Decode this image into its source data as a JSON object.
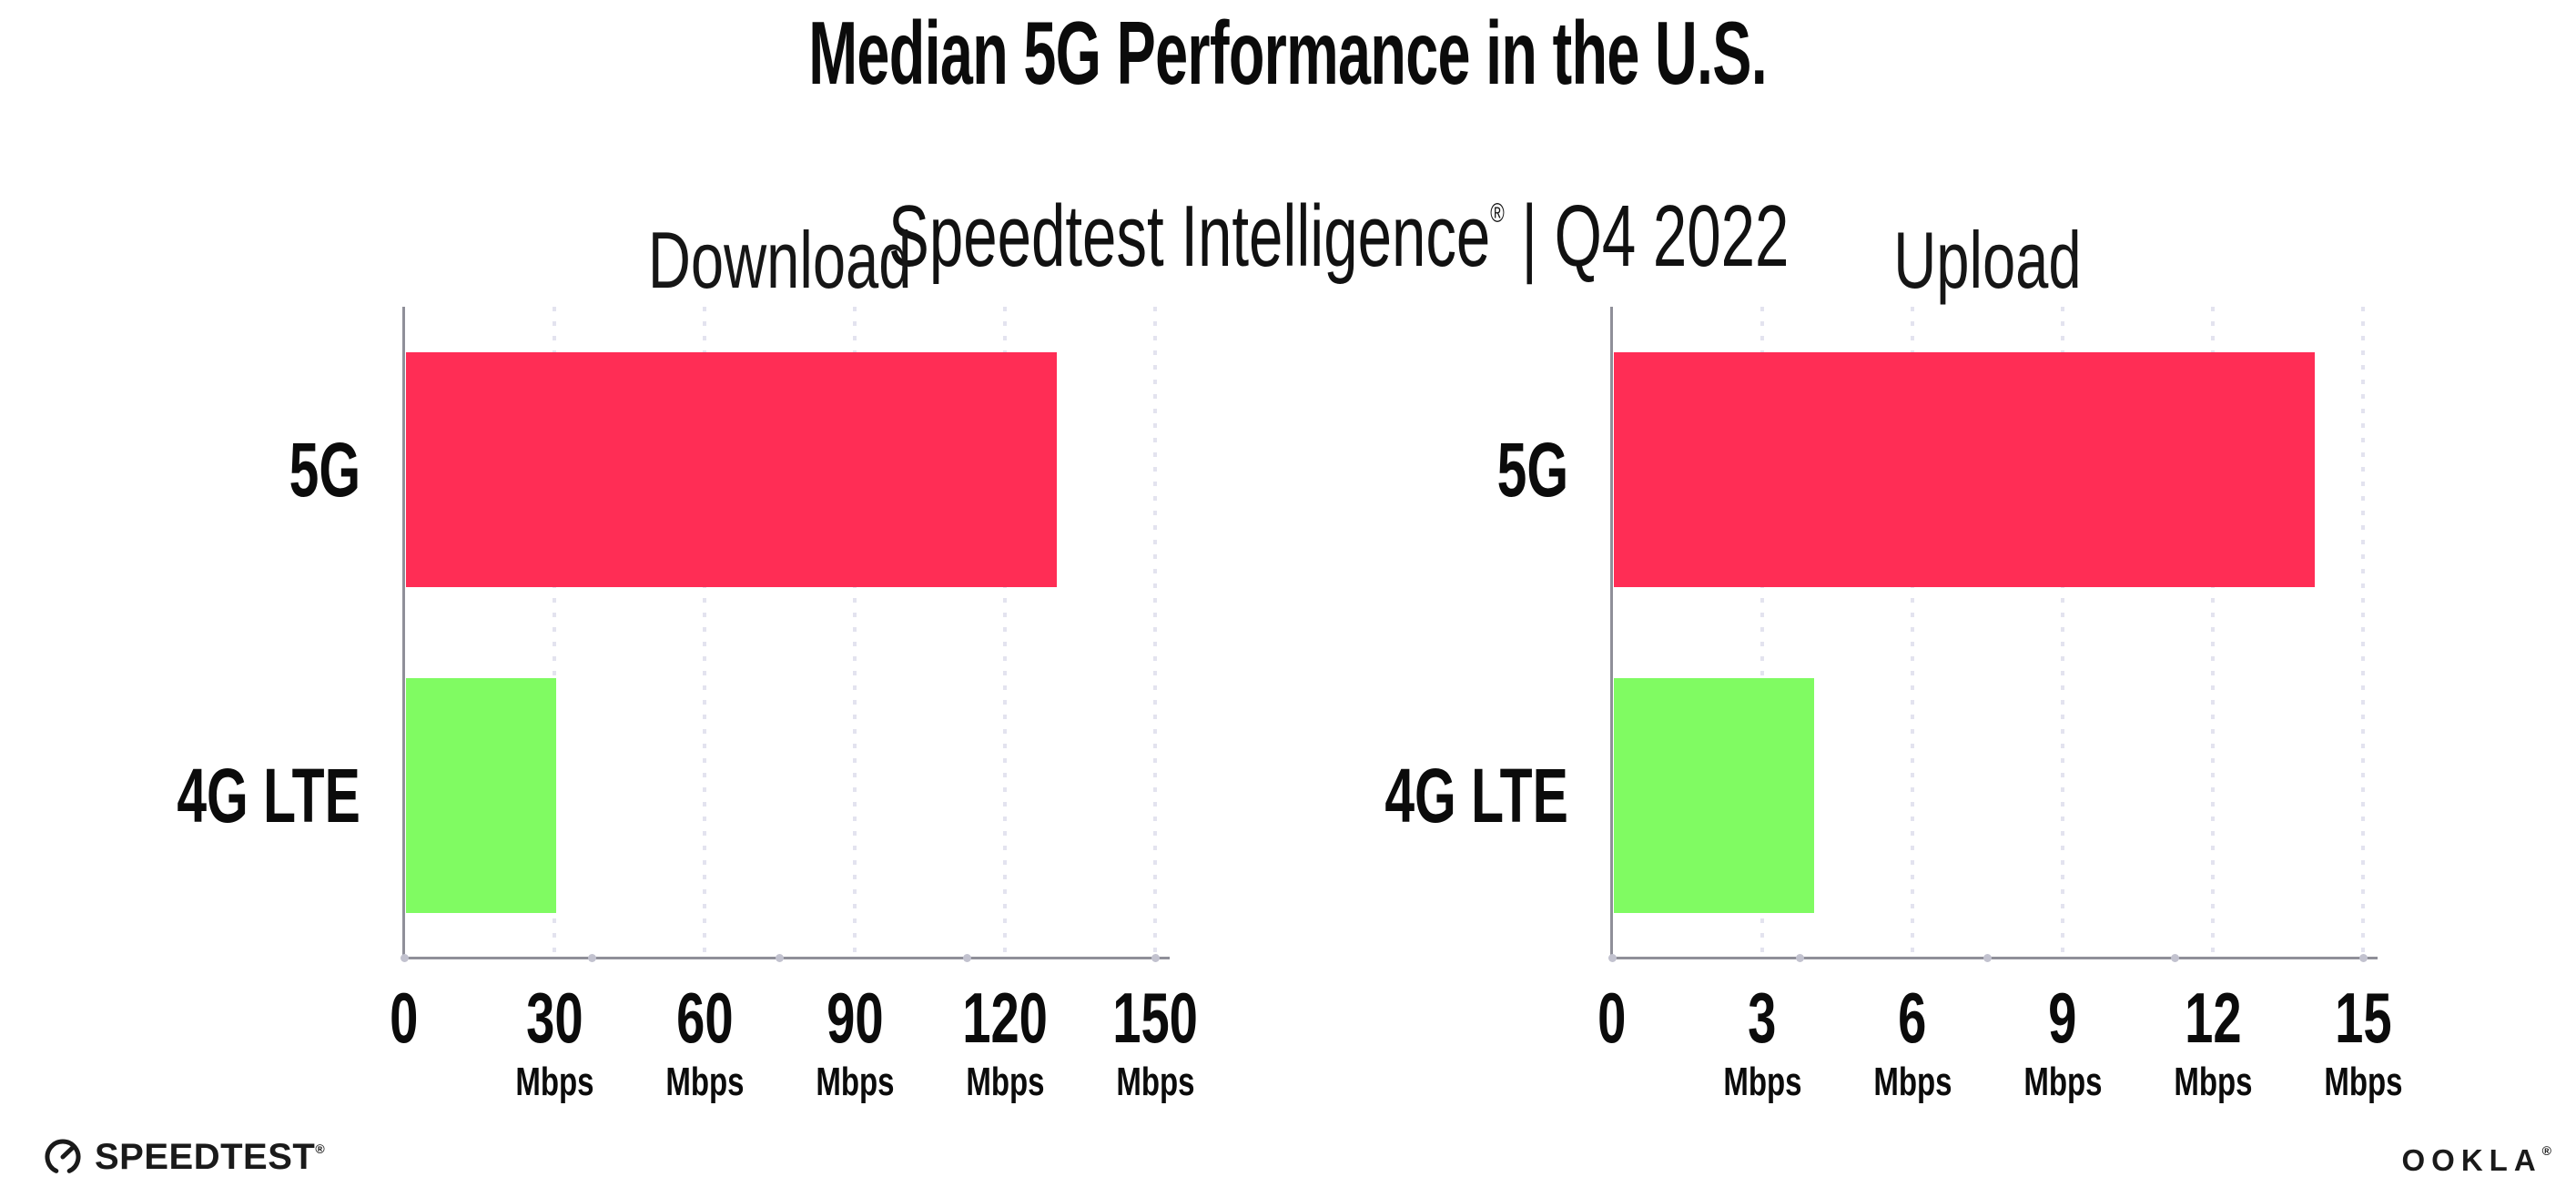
{
  "header": {
    "title": "Median 5G Performance in the U.S.",
    "subtitle_product": "Speedtest Intelligence",
    "subtitle_reg": "®",
    "subtitle_rest": " | Q4 2022"
  },
  "footer": {
    "speedtest_label": "SPEEDTEST",
    "speedtest_reg": "®",
    "ookla_label": "OOKLA",
    "ookla_reg": "®"
  },
  "colors": {
    "bar_5g": "#ff2d55",
    "bar_4g_lte": "#80fb62",
    "axis": "#8f8f99",
    "gridline": "#e3e3ef",
    "axis_dot": "#c2c2cf",
    "text": "#0b0b0b"
  },
  "chart_data": [
    {
      "type": "bar",
      "orientation": "horizontal",
      "title": "Download",
      "categories": [
        "5G",
        "4G LTE"
      ],
      "values": [
        130,
        30
      ],
      "unit": "Mbps",
      "xlim": [
        0,
        150
      ],
      "xticks": [
        0,
        30,
        60,
        90,
        120,
        150
      ],
      "tick_unit_label": "Mbps",
      "series_colors": [
        "#ff2d55",
        "#80fb62"
      ],
      "grid": "dotted vertical gridlines at each tick except 0",
      "legend": "none"
    },
    {
      "type": "bar",
      "orientation": "horizontal",
      "title": "Upload",
      "categories": [
        "5G",
        "4G LTE"
      ],
      "values": [
        14,
        4
      ],
      "unit": "Mbps",
      "xlim": [
        0,
        15
      ],
      "xticks": [
        0,
        3,
        6,
        9,
        12,
        15
      ],
      "tick_unit_label": "Mbps",
      "series_colors": [
        "#ff2d55",
        "#80fb62"
      ],
      "grid": "dotted vertical gridlines at each tick except 0",
      "legend": "none"
    }
  ]
}
